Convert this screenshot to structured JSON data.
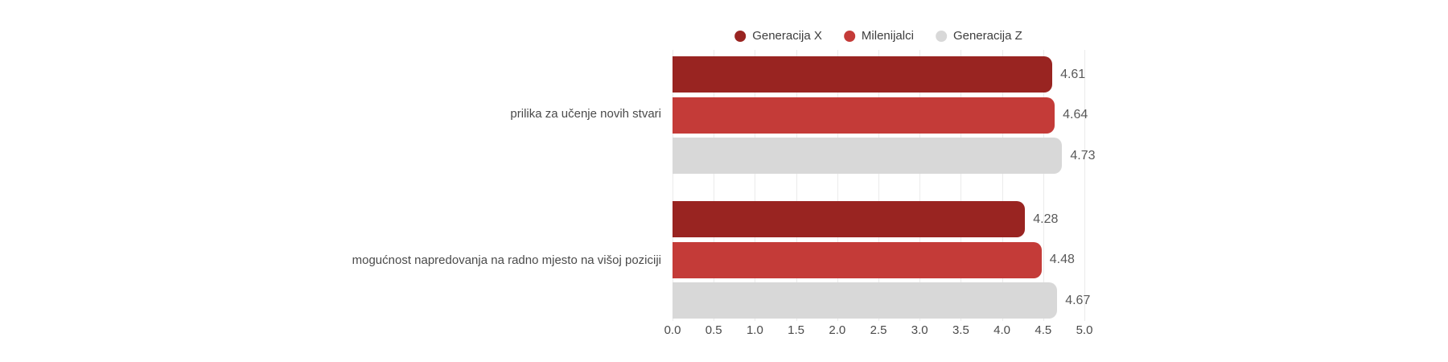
{
  "chart_data": {
    "type": "bar",
    "orientation": "horizontal",
    "categories": [
      "prilika za učenje novih stvari",
      "mogućnost napredovanja na radno mjesto na višoj poziciji"
    ],
    "series": [
      {
        "name": "Generacija X",
        "color": "#992421",
        "values": [
          4.61,
          4.28
        ]
      },
      {
        "name": "Milenijalci",
        "color": "#C43B38",
        "values": [
          4.64,
          4.48
        ]
      },
      {
        "name": "Generacija Z",
        "color": "#D8D8D8",
        "values": [
          4.73,
          4.67
        ]
      }
    ],
    "xlim": [
      0,
      5
    ],
    "x_ticks": [
      "0.0",
      "0.5",
      "1.0",
      "1.5",
      "2.0",
      "2.5",
      "3.0",
      "3.5",
      "4.0",
      "4.5",
      "5.0"
    ],
    "grid": "vertical",
    "legend_position": "top",
    "value_labels_shown": true,
    "value_label_format": "0.00",
    "background_color": "#ffffff",
    "grid_color": "#ebebeb",
    "text_color": "#4a4a4a"
  }
}
